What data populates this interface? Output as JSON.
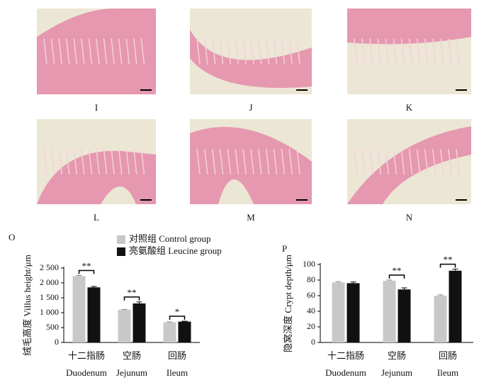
{
  "panels": [
    "I",
    "J",
    "K",
    "L",
    "M",
    "N"
  ],
  "chart_data": [
    {
      "type": "bar",
      "panel_label": "O",
      "y_label": "绒毛高度 Villus height/μm",
      "categories": [
        "十二指肠",
        "空肠",
        "回肠"
      ],
      "category_subtitles": [
        "Duodenum",
        "Jejunum",
        "Ileum"
      ],
      "ylim": [
        0,
        2500
      ],
      "yticks": [
        0,
        500,
        {
          "value": 1000,
          "label": "1 000"
        },
        {
          "value": 1500,
          "label": "1 500"
        },
        {
          "value": 2000,
          "label": "2 000"
        },
        {
          "value": 2500,
          "label": "2 500"
        }
      ],
      "series": [
        {
          "name": "对照组 Control group",
          "color": "#c8c8c8",
          "values": [
            2230,
            1100,
            680
          ],
          "errors": [
            20,
            10,
            10
          ]
        },
        {
          "name": "亮氨酸组 Leucine group",
          "color": "#111111",
          "values": [
            1850,
            1310,
            700
          ],
          "errors": [
            30,
            50,
            15
          ]
        }
      ],
      "significance": [
        "**",
        "**",
        "*"
      ]
    },
    {
      "type": "bar",
      "panel_label": "P",
      "y_label": "隐窝深度 Crypt depth/μm",
      "categories": [
        "十二指肠",
        "空肠",
        "回肠"
      ],
      "category_subtitles": [
        "Duodenum",
        "Jejunum",
        "Ileum"
      ],
      "ylim": [
        0,
        100
      ],
      "yticks": [
        0,
        20,
        40,
        60,
        80,
        100
      ],
      "series": [
        {
          "color": "#c8c8c8",
          "values": [
            77,
            79,
            60
          ],
          "errors": [
            1,
            1,
            1
          ]
        },
        {
          "color": "#111111",
          "values": [
            76,
            68,
            92
          ],
          "errors": [
            1.5,
            2,
            2
          ]
        }
      ],
      "significance": [
        null,
        "**",
        "**"
      ]
    }
  ]
}
